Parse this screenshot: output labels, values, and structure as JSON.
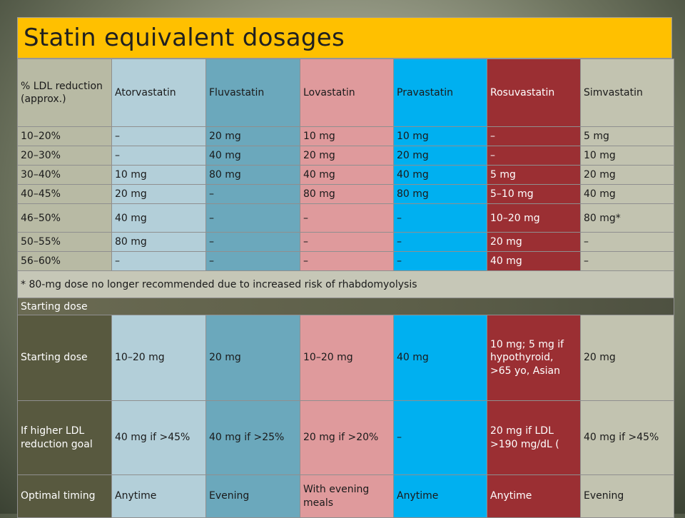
{
  "title": "Statin equivalent dosages",
  "headers": [
    "% LDL reduction (approx.)",
    "Atorvastatin",
    "Fluvastatin",
    "Lovastatin",
    "Pravastatin",
    "Rosuvastatin",
    "Simvastatin"
  ],
  "rows": [
    [
      "10–20%",
      "–",
      "20 mg",
      "10 mg",
      "10 mg",
      "–",
      "5 mg"
    ],
    [
      "20–30%",
      "–",
      "40 mg",
      "20 mg",
      "20 mg",
      "–",
      "10 mg"
    ],
    [
      "30–40%",
      "10 mg",
      "80 mg",
      "40 mg",
      "40 mg",
      "5 mg",
      "20 mg"
    ],
    [
      "40–45%",
      "20 mg",
      "–",
      "80 mg",
      "80 mg",
      "5–10 mg",
      "40 mg"
    ],
    [
      "46–50%",
      "40 mg",
      "–",
      "–",
      "–",
      "10–20 mg",
      "80 mg*"
    ],
    [
      "50–55%",
      "80 mg",
      "–",
      "–",
      "–",
      "20 mg",
      "–"
    ],
    [
      "56–60%",
      "–",
      "–",
      "–",
      "–",
      "40 mg",
      "–"
    ]
  ],
  "footnote": "* 80-mg dose no longer recommended due to increased risk of rhabdomyolysis",
  "section_label": "Starting dose",
  "starting_rows": [
    [
      "Starting dose",
      "10–20 mg",
      "20 mg",
      "10–20 mg",
      "40 mg",
      "10 mg;\n5 mg if hypothyroid, >65 yo, Asian",
      "20 mg"
    ],
    [
      "If higher LDL reduction goal",
      "40 mg if >45%",
      "40 mg if >25%",
      "20 mg if >20%",
      "–",
      "20 mg if LDL >190 mg/dL (",
      "40 mg if >45%"
    ],
    [
      "Optimal timing",
      "Anytime",
      "Evening",
      "With evening meals",
      "Anytime",
      "Anytime",
      "Evening"
    ]
  ],
  "colors": {
    "title_bg": "#ffc000",
    "atorvastatin": "#b3cfd9",
    "fluvastatin": "#6ba8bc",
    "lovastatin": "#df9a9c",
    "pravastatin": "#00b0f0",
    "rosuvastatin": "#9b2f33",
    "simvastatin": "#c2c3b0"
  }
}
